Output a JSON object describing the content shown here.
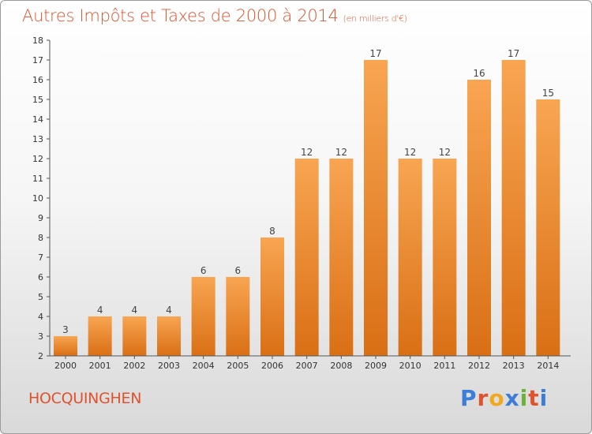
{
  "title": "Autres Impôts et Taxes de 2000 à 2014",
  "unit_note": "(en milliers d'€)",
  "commune": "HOCQUINGHEN",
  "brand": {
    "letters": [
      "P",
      "r",
      "o",
      "x",
      "i",
      "t",
      "i"
    ],
    "colors": [
      "#3b7dd8",
      "#e0522c",
      "#f2a81d",
      "#3b7dd8",
      "#6ab23a",
      "#e0522c",
      "#3b7dd8"
    ]
  },
  "colors": {
    "bar_top": "#f8a552",
    "bar_bottom": "#d96f15",
    "accent": "#e0522c"
  },
  "chart_data": {
    "type": "bar",
    "title": "Autres Impôts et Taxes de 2000 à 2014",
    "ylabel": "",
    "xlabel": "",
    "categories": [
      "2000",
      "2001",
      "2002",
      "2003",
      "2004",
      "2005",
      "2006",
      "2007",
      "2008",
      "2009",
      "2010",
      "2011",
      "2012",
      "2013",
      "2014"
    ],
    "values": [
      3,
      4,
      4,
      4,
      6,
      6,
      8,
      12,
      12,
      17,
      12,
      12,
      16,
      17,
      15
    ],
    "ylim": [
      2,
      18
    ],
    "yticks": [
      2,
      3,
      4,
      5,
      6,
      7,
      8,
      9,
      10,
      11,
      12,
      13,
      14,
      15,
      16,
      17,
      18
    ],
    "grid": false,
    "legend": "none"
  }
}
